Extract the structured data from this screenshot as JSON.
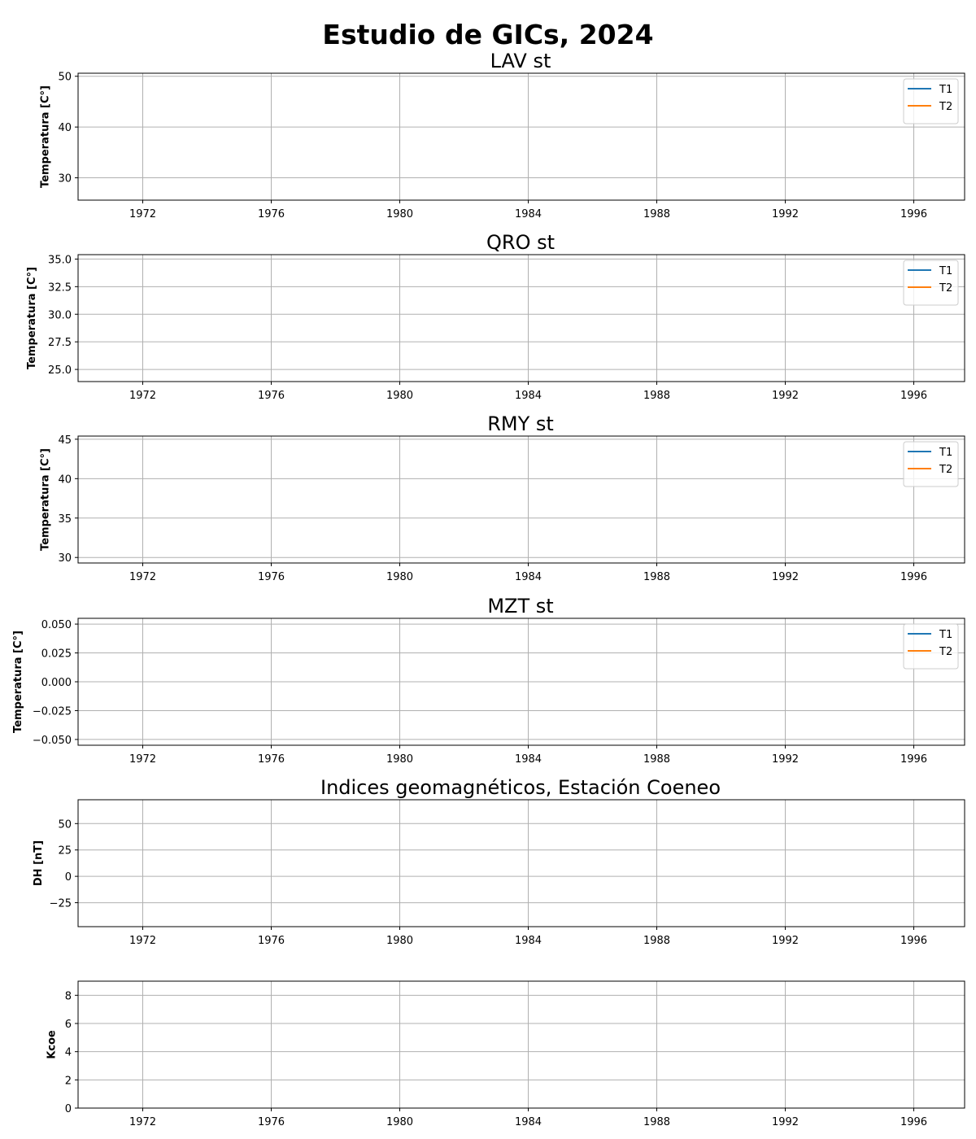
{
  "suptitle": "Estudio de GICs, 2024",
  "colors": {
    "T1": "#1f77b4",
    "T2": "#ff7f0e",
    "grid": "#b0b0b0",
    "axis": "#000000"
  },
  "chart_data": [
    {
      "type": "line",
      "title": "LAV st",
      "ylabel": "Temperatura [C°]",
      "x_ticks": [
        "1972",
        "1976",
        "1980",
        "1984",
        "1988",
        "1992",
        "1996"
      ],
      "xlim": [
        "1970",
        "1997.5"
      ],
      "ylim": [
        25.6,
        50.6
      ],
      "y_ticks": [
        {
          "value": 30,
          "label": "30"
        },
        {
          "value": 40,
          "label": "40"
        },
        {
          "value": 50,
          "label": "50"
        }
      ],
      "grid": true,
      "legend": [
        "T1",
        "T2"
      ],
      "legend_position": "upper right",
      "series": [
        {
          "name": "T1",
          "values": []
        },
        {
          "name": "T2",
          "values": []
        }
      ]
    },
    {
      "type": "line",
      "title": "QRO st",
      "ylabel": "Temperatura [C°]",
      "x_ticks": [
        "1972",
        "1976",
        "1980",
        "1984",
        "1988",
        "1992",
        "1996"
      ],
      "xlim": [
        "1970",
        "1997.5"
      ],
      "ylim": [
        23.9,
        35.4
      ],
      "y_ticks": [
        {
          "value": 25.0,
          "label": "25.0"
        },
        {
          "value": 27.5,
          "label": "27.5"
        },
        {
          "value": 30.0,
          "label": "30.0"
        },
        {
          "value": 32.5,
          "label": "32.5"
        },
        {
          "value": 35.0,
          "label": "35.0"
        }
      ],
      "grid": true,
      "legend": [
        "T1",
        "T2"
      ],
      "legend_position": "upper right",
      "series": [
        {
          "name": "T1",
          "values": []
        },
        {
          "name": "T2",
          "values": []
        }
      ]
    },
    {
      "type": "line",
      "title": "RMY st",
      "ylabel": "Temperatura [C°]",
      "x_ticks": [
        "1972",
        "1976",
        "1980",
        "1984",
        "1988",
        "1992",
        "1996"
      ],
      "xlim": [
        "1970",
        "1997.5"
      ],
      "ylim": [
        29.3,
        45.4
      ],
      "y_ticks": [
        {
          "value": 30,
          "label": "30"
        },
        {
          "value": 35,
          "label": "35"
        },
        {
          "value": 40,
          "label": "40"
        },
        {
          "value": 45,
          "label": "45"
        }
      ],
      "grid": true,
      "legend": [
        "T1",
        "T2"
      ],
      "legend_position": "upper right",
      "series": [
        {
          "name": "T1",
          "values": []
        },
        {
          "name": "T2",
          "values": []
        }
      ]
    },
    {
      "type": "line",
      "title": "MZT st",
      "ylabel": "Temperatura [C°]",
      "x_ticks": [
        "1972",
        "1976",
        "1980",
        "1984",
        "1988",
        "1992",
        "1996"
      ],
      "xlim": [
        "1970",
        "1997.5"
      ],
      "ylim": [
        -0.055,
        0.055
      ],
      "y_ticks": [
        {
          "value": -0.05,
          "label": "−0.050"
        },
        {
          "value": -0.025,
          "label": "−0.025"
        },
        {
          "value": 0.0,
          "label": "0.000"
        },
        {
          "value": 0.025,
          "label": "0.025"
        },
        {
          "value": 0.05,
          "label": "0.050"
        }
      ],
      "grid": true,
      "legend": [
        "T1",
        "T2"
      ],
      "legend_position": "upper right",
      "series": [
        {
          "name": "T1",
          "values": []
        },
        {
          "name": "T2",
          "values": []
        }
      ]
    },
    {
      "type": "line",
      "title": "Indices geomagnéticos, Estación Coeneo",
      "ylabel": "DH [nT]",
      "x_ticks": [
        "1972",
        "1976",
        "1980",
        "1984",
        "1988",
        "1992",
        "1996"
      ],
      "xlim": [
        "1970",
        "1997.5"
      ],
      "ylim": [
        -47.7,
        72.6
      ],
      "y_ticks": [
        {
          "value": -25,
          "label": "−25"
        },
        {
          "value": 0,
          "label": "0"
        },
        {
          "value": 25,
          "label": "25"
        },
        {
          "value": 50,
          "label": "50"
        }
      ],
      "grid": true,
      "legend": [],
      "series": []
    },
    {
      "type": "line",
      "title": "",
      "ylabel": "Kcoe",
      "x_ticks": [
        "1972",
        "1976",
        "1980",
        "1984",
        "1988",
        "1992",
        "1996"
      ],
      "xlim": [
        "1970",
        "1997.5"
      ],
      "ylim": [
        0,
        9
      ],
      "y_ticks": [
        {
          "value": 0,
          "label": "0"
        },
        {
          "value": 2,
          "label": "2"
        },
        {
          "value": 4,
          "label": "4"
        },
        {
          "value": 6,
          "label": "6"
        },
        {
          "value": 8,
          "label": "8"
        }
      ],
      "grid": true,
      "legend": [],
      "series": []
    }
  ]
}
